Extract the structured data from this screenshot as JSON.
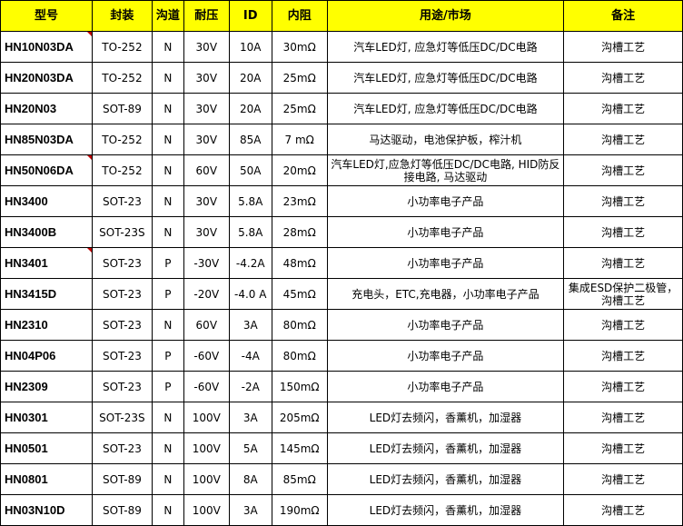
{
  "headers": [
    "型号",
    "封装",
    "沟道",
    "耐压",
    "ID",
    "内阻",
    "用途/市场",
    "备注"
  ],
  "rows": [
    {
      "model": "HN10N03DA",
      "package": "TO-252",
      "channel": "N",
      "voltage": "30V",
      "id": "10A",
      "rds": "30mΩ",
      "application": "汽车LED灯, 应急灯等低压DC/DC电路",
      "note": "沟槽工艺",
      "comment_flag": true
    },
    {
      "model": "HN20N03DA",
      "package": "TO-252",
      "channel": "N",
      "voltage": "30V",
      "id": "20A",
      "rds": "25mΩ",
      "application": "汽车LED灯, 应急灯等低压DC/DC电路",
      "note": "沟槽工艺"
    },
    {
      "model": "HN20N03",
      "package": "SOT-89",
      "channel": "N",
      "voltage": "30V",
      "id": "20A",
      "rds": "25mΩ",
      "application": "汽车LED灯, 应急灯等低压DC/DC电路",
      "note": "沟槽工艺"
    },
    {
      "model": "HN85N03DA",
      "package": "TO-252",
      "channel": "N",
      "voltage": "30V",
      "id": "85A",
      "rds": "7 mΩ",
      "application": "马达驱动，电池保护板，榨汁机",
      "note": "沟槽工艺"
    },
    {
      "model": "HN50N06DA",
      "package": "TO-252",
      "channel": "N",
      "voltage": "60V",
      "id": "50A",
      "rds": "20mΩ",
      "application": "汽车LED灯,应急灯等低压DC/DC电路, HID防反接电路, 马达驱动",
      "note": "沟槽工艺",
      "comment_flag": true
    },
    {
      "model": "HN3400",
      "package": "SOT-23",
      "channel": "N",
      "voltage": "30V",
      "id": "5.8A",
      "rds": "23mΩ",
      "application": "小功率电子产品",
      "note": "沟槽工艺"
    },
    {
      "model": "HN3400B",
      "package": "SOT-23S",
      "channel": "N",
      "voltage": "30V",
      "id": "5.8A",
      "rds": "28mΩ",
      "application": "小功率电子产品",
      "note": "沟槽工艺"
    },
    {
      "model": "HN3401",
      "package": "SOT-23",
      "channel": "P",
      "voltage": "-30V",
      "id": "-4.2A",
      "rds": "48mΩ",
      "application": "小功率电子产品",
      "note": "沟槽工艺",
      "comment_flag": true
    },
    {
      "model": "HN3415D",
      "package": "SOT-23",
      "channel": "P",
      "voltage": "-20V",
      "id": "-4.0 A",
      "rds": "45mΩ",
      "application": "充电头，ETC,充电器，小功率电子产品",
      "note": "集成ESD保护二极管，沟槽工艺"
    },
    {
      "model": "HN2310",
      "package": "SOT-23",
      "channel": "N",
      "voltage": "60V",
      "id": "3A",
      "rds": "80mΩ",
      "application": "小功率电子产品",
      "note": "沟槽工艺"
    },
    {
      "model": "HN04P06",
      "package": "SOT-23",
      "channel": "P",
      "voltage": "-60V",
      "id": "-4A",
      "rds": "80mΩ",
      "application": "小功率电子产品",
      "note": "沟槽工艺"
    },
    {
      "model": "HN2309",
      "package": "SOT-23",
      "channel": "P",
      "voltage": "-60V",
      "id": "-2A",
      "rds": "150mΩ",
      "application": "小功率电子产品",
      "note": "沟槽工艺"
    },
    {
      "model": "HN0301",
      "package": "SOT-23S",
      "channel": "N",
      "voltage": "100V",
      "id": "3A",
      "rds": "205mΩ",
      "application": "LED灯去频闪，香薰机，加湿器",
      "note": "沟槽工艺"
    },
    {
      "model": "HN0501",
      "package": "SOT-23",
      "channel": "N",
      "voltage": "100V",
      "id": "5A",
      "rds": "145mΩ",
      "application": "LED灯去频闪，香薰机，加湿器",
      "note": "沟槽工艺"
    },
    {
      "model": "HN0801",
      "package": "SOT-89",
      "channel": "N",
      "voltage": "100V",
      "id": "8A",
      "rds": "85mΩ",
      "application": "LED灯去频闪，香薰机，加湿器",
      "note": "沟槽工艺"
    },
    {
      "model": "HN03N10D",
      "package": "SOT-89",
      "channel": "N",
      "voltage": "100V",
      "id": "3A",
      "rds": "190mΩ",
      "application": "LED灯去频闪，香薰机，加湿器",
      "note": "沟槽工艺"
    }
  ]
}
